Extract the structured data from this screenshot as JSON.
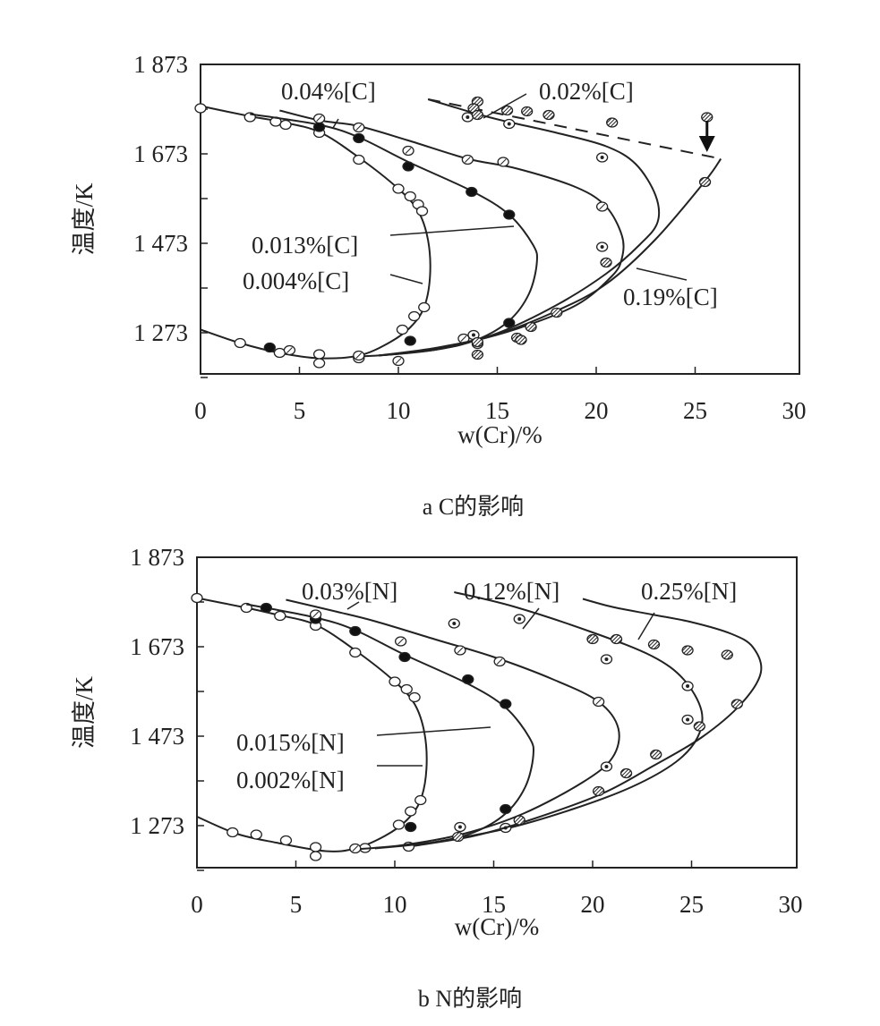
{
  "chart_data": [
    {
      "type": "line",
      "caption": "a C的影响",
      "xlabel": "w(Cr)/%",
      "ylabel": "温度/K",
      "xlim": [
        0,
        30
      ],
      "ylim": [
        1181,
        1873
      ],
      "xticks": [
        0,
        5,
        10,
        15,
        20,
        25,
        30
      ],
      "yticks": [
        1873,
        1673,
        1473,
        1273
      ],
      "ytick_labels": [
        "1 873",
        "1 673",
        "1 473",
        "1 273"
      ],
      "grid": false,
      "series": [
        {
          "name": "0.004%[C]",
          "marker": "open",
          "curve": [
            [
              0,
              1780
            ],
            [
              2.5,
              1757
            ],
            [
              4,
              1745
            ],
            [
              6,
              1722
            ],
            [
              8,
              1665
            ],
            [
              10,
              1595
            ],
            [
              11,
              1545
            ],
            [
              11.5,
              1480
            ],
            [
              11.6,
              1400
            ],
            [
              11.3,
              1330
            ],
            [
              10.6,
              1285
            ],
            [
              9.5,
              1250
            ],
            [
              8,
              1222
            ],
            [
              6,
              1216
            ],
            [
              4,
              1228
            ],
            [
              2,
              1250
            ],
            [
              0,
              1280
            ]
          ],
          "points": [
            [
              0,
              1775
            ],
            [
              2.5,
              1755
            ],
            [
              3.8,
              1745
            ],
            [
              4.3,
              1738
            ],
            [
              6,
              1720
            ],
            [
              8,
              1660
            ],
            [
              10,
              1595
            ],
            [
              10.6,
              1578
            ],
            [
              11,
              1560
            ],
            [
              11.2,
              1545
            ],
            [
              11.3,
              1330
            ],
            [
              10.8,
              1310
            ],
            [
              10.2,
              1280
            ],
            [
              8,
              1216
            ],
            [
              6,
              1225
            ],
            [
              6,
              1205
            ],
            [
              4,
              1228
            ],
            [
              2,
              1250
            ]
          ]
        },
        {
          "name": "0.013%[C]",
          "marker": "filled",
          "curve": [
            [
              2.5,
              1762
            ],
            [
              6,
              1738
            ],
            [
              8,
              1710
            ],
            [
              10.5,
              1655
            ],
            [
              13.7,
              1590
            ],
            [
              15.6,
              1537
            ],
            [
              16.8,
              1470
            ],
            [
              17,
              1430
            ],
            [
              16.6,
              1360
            ],
            [
              15.6,
              1300
            ],
            [
              14,
              1258
            ],
            [
              12,
              1236
            ],
            [
              9,
              1222
            ]
          ],
          "points": [
            [
              6,
              1733
            ],
            [
              8,
              1708
            ],
            [
              10.5,
              1645
            ],
            [
              13.7,
              1588
            ],
            [
              15.6,
              1537
            ],
            [
              15.6,
              1295
            ],
            [
              10.6,
              1255
            ],
            [
              3.5,
              1240
            ]
          ]
        },
        {
          "name": "0.04%[C]",
          "marker": "half",
          "curve": [
            [
              4,
              1770
            ],
            [
              6,
              1748
            ],
            [
              8,
              1735
            ],
            [
              10.5,
              1703
            ],
            [
              13.5,
              1662
            ],
            [
              16,
              1640
            ],
            [
              19,
              1598
            ],
            [
              20.5,
              1555
            ],
            [
              21.3,
              1490
            ],
            [
              21.3,
              1440
            ],
            [
              20.8,
              1400
            ],
            [
              19,
              1335
            ],
            [
              16,
              1282
            ],
            [
              13,
              1247
            ],
            [
              10,
              1226
            ],
            [
              8,
              1220
            ]
          ],
          "points": [
            [
              6,
              1752
            ],
            [
              8,
              1732
            ],
            [
              10.5,
              1680
            ],
            [
              13.5,
              1660
            ],
            [
              15.3,
              1655
            ],
            [
              20.3,
              1555
            ],
            [
              13.3,
              1260
            ],
            [
              10,
              1210
            ],
            [
              8,
              1222
            ],
            [
              4.5,
              1234
            ]
          ]
        },
        {
          "name": "0.02%[C]",
          "marker": "dotted",
          "curve": [
            [
              11.5,
              1795
            ],
            [
              14,
              1762
            ],
            [
              15.5,
              1745
            ],
            [
              18,
              1720
            ],
            [
              20.5,
              1690
            ],
            [
              22,
              1650
            ],
            [
              23,
              1580
            ],
            [
              23.1,
              1520
            ],
            [
              22.2,
              1470
            ],
            [
              20.5,
              1405
            ],
            [
              18,
              1335
            ],
            [
              15,
              1272
            ],
            [
              12,
              1236
            ],
            [
              9,
              1222
            ]
          ],
          "points": [
            [
              13.5,
              1755
            ],
            [
              15.6,
              1740
            ],
            [
              20.3,
              1665
            ],
            [
              20.3,
              1465
            ],
            [
              13.8,
              1268
            ],
            [
              14,
              1248
            ]
          ]
        },
        {
          "name": "0.19%[C]",
          "marker": "hatched",
          "curve": [
            [
              26.3,
              1662
            ],
            [
              25.5,
              1612
            ],
            [
              23,
              1482
            ],
            [
              20.5,
              1382
            ],
            [
              18,
              1322
            ],
            [
              15,
              1270
            ],
            [
              12,
              1240
            ],
            [
              9,
              1222
            ]
          ],
          "dashed": [
            [
              11.5,
              1795
            ],
            [
              26.3,
              1662
            ]
          ],
          "points": [
            [
              14,
              1790
            ],
            [
              13.8,
              1775
            ],
            [
              14,
              1760
            ],
            [
              15.5,
              1770
            ],
            [
              16.5,
              1768
            ],
            [
              17.6,
              1760
            ],
            [
              20.8,
              1743
            ],
            [
              25.6,
              1755
            ],
            [
              25.5,
              1610
            ],
            [
              20.5,
              1430
            ],
            [
              18,
              1318
            ],
            [
              16.7,
              1286
            ],
            [
              16,
              1262
            ],
            [
              16.2,
              1257
            ],
            [
              14,
              1252
            ],
            [
              14,
              1224
            ]
          ]
        }
      ],
      "annotations": {
        "arrow": "down-arrow at w(Cr)=25.6"
      }
    },
    {
      "type": "line",
      "caption": "b N的影响",
      "xlabel": "w(Cr)/%",
      "ylabel": "温度/K",
      "xlim": [
        0,
        30
      ],
      "ylim": [
        1181,
        1873
      ],
      "xticks": [
        0,
        5,
        10,
        15,
        20,
        25,
        30
      ],
      "yticks": [
        1873,
        1673,
        1473,
        1273
      ],
      "ytick_labels": [
        "1 873",
        "1 673",
        "1 473",
        "1 273"
      ],
      "grid": false,
      "series": [
        {
          "name": "0.002%[N]",
          "marker": "open",
          "curve": [
            [
              0,
              1782
            ],
            [
              2.5,
              1760
            ],
            [
              4,
              1745
            ],
            [
              6,
              1722
            ],
            [
              8,
              1665
            ],
            [
              10,
              1595
            ],
            [
              11,
              1545
            ],
            [
              11.5,
              1480
            ],
            [
              11.6,
              1400
            ],
            [
              11.3,
              1330
            ],
            [
              10.6,
              1285
            ],
            [
              9.5,
              1250
            ],
            [
              8,
              1222
            ],
            [
              6.5,
              1216
            ],
            [
              4,
              1235
            ],
            [
              2,
              1255
            ],
            [
              0,
              1293
            ]
          ],
          "points": [
            [
              0,
              1782
            ],
            [
              2.5,
              1760
            ],
            [
              4.2,
              1742
            ],
            [
              6,
              1720
            ],
            [
              8,
              1660
            ],
            [
              10,
              1595
            ],
            [
              10.6,
              1578
            ],
            [
              11,
              1560
            ],
            [
              11.3,
              1330
            ],
            [
              10.8,
              1305
            ],
            [
              10.2,
              1275
            ],
            [
              8.5,
              1223
            ],
            [
              6,
              1225
            ],
            [
              6,
              1205
            ],
            [
              4.5,
              1240
            ],
            [
              3,
              1253
            ],
            [
              1.8,
              1258
            ],
            [
              10.7,
              1226
            ]
          ]
        },
        {
          "name": "0.015%[N]",
          "marker": "filled",
          "curve": [
            [
              2.5,
              1768
            ],
            [
              6,
              1738
            ],
            [
              8,
              1710
            ],
            [
              10.5,
              1655
            ],
            [
              13.7,
              1590
            ],
            [
              15.6,
              1537
            ],
            [
              16.8,
              1470
            ],
            [
              17,
              1430
            ],
            [
              16.6,
              1360
            ],
            [
              15.6,
              1300
            ],
            [
              14,
              1258
            ],
            [
              12,
              1236
            ],
            [
              9,
              1222
            ]
          ],
          "points": [
            [
              3.5,
              1760
            ],
            [
              6,
              1735
            ],
            [
              8,
              1708
            ],
            [
              10.5,
              1650
            ],
            [
              13.7,
              1600
            ],
            [
              15.6,
              1545
            ],
            [
              15.6,
              1310
            ],
            [
              10.8,
              1270
            ]
          ]
        },
        {
          "name": "0.03%[N]",
          "marker": "half",
          "curve": [
            [
              4.5,
              1778
            ],
            [
              7,
              1752
            ],
            [
              9,
              1730
            ],
            [
              12,
              1690
            ],
            [
              15,
              1650
            ],
            [
              18,
              1600
            ],
            [
              20.3,
              1550
            ],
            [
              21.3,
              1490
            ],
            [
              21,
              1425
            ],
            [
              19.5,
              1370
            ],
            [
              16.5,
              1300
            ],
            [
              13.5,
              1255
            ],
            [
              10.5,
              1230
            ],
            [
              8,
              1220
            ]
          ],
          "points": [
            [
              6,
              1745
            ],
            [
              10.3,
              1685
            ],
            [
              13.3,
              1665
            ],
            [
              15.3,
              1640
            ],
            [
              20.3,
              1550
            ],
            [
              8,
              1222
            ]
          ]
        },
        {
          "name": "0.12%[N]",
          "marker": "dotted",
          "curve": [
            [
              13,
              1795
            ],
            [
              16,
              1763
            ],
            [
              20,
              1705
            ],
            [
              23,
              1652
            ],
            [
              24.6,
              1600
            ],
            [
              25.5,
              1530
            ],
            [
              25.3,
              1470
            ],
            [
              24.2,
              1415
            ],
            [
              22,
              1360
            ],
            [
              19,
              1310
            ],
            [
              15.5,
              1265
            ],
            [
              11,
              1228
            ]
          ],
          "points": [
            [
              13,
              1725
            ],
            [
              16.3,
              1735
            ],
            [
              20.7,
              1645
            ],
            [
              24.8,
              1585
            ],
            [
              24.8,
              1510
            ],
            [
              20.7,
              1405
            ],
            [
              13.3,
              1270
            ],
            [
              15.6,
              1268
            ]
          ]
        },
        {
          "name": "0.25%[N]",
          "marker": "hatched",
          "curve": [
            [
              19.5,
              1780
            ],
            [
              21,
              1762
            ],
            [
              23,
              1745
            ],
            [
              25,
              1728
            ],
            [
              27,
              1702
            ],
            [
              28.1,
              1672
            ],
            [
              28.5,
              1615
            ],
            [
              27.5,
              1545
            ],
            [
              25.5,
              1470
            ],
            [
              23,
              1405
            ],
            [
              20.5,
              1345
            ],
            [
              17,
              1288
            ],
            [
              14,
              1250
            ],
            [
              11,
              1228
            ]
          ],
          "points": [
            [
              20,
              1690
            ],
            [
              21.2,
              1690
            ],
            [
              23.1,
              1678
            ],
            [
              24.8,
              1665
            ],
            [
              26.8,
              1655
            ],
            [
              27.3,
              1545
            ],
            [
              25.4,
              1495
            ],
            [
              23.2,
              1432
            ],
            [
              21.7,
              1390
            ],
            [
              20.3,
              1350
            ],
            [
              16.3,
              1285
            ],
            [
              13.2,
              1248
            ]
          ]
        }
      ]
    }
  ]
}
